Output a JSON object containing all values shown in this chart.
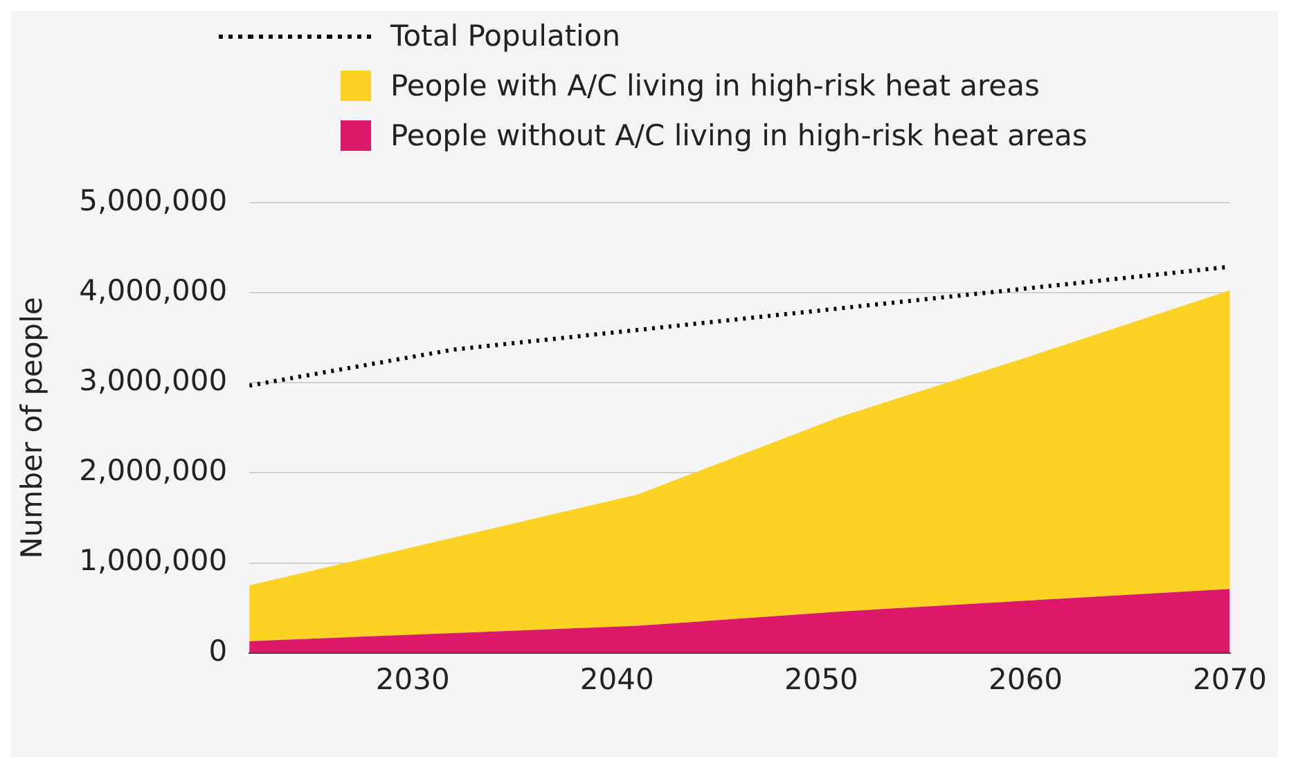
{
  "chart_data": {
    "type": "area",
    "stacked": true,
    "xlabel": null,
    "ylabel": "Number of people",
    "xlim": [
      2022,
      2070
    ],
    "xticks": [
      2030,
      2040,
      2050,
      2060,
      2070
    ],
    "ylim": [
      0,
      5000000
    ],
    "yticks": [
      0,
      {
        "value": 1000000,
        "label": "1,000,000"
      },
      {
        "value": 2000000,
        "label": "2,000,000"
      },
      {
        "value": 3000000,
        "label": "3,000,000"
      },
      {
        "value": 4000000,
        "label": "4,000,000"
      },
      {
        "value": 5000000,
        "label": "5,000,000"
      }
    ],
    "grid": "y",
    "legend": "top",
    "series": [
      {
        "name": "People without A/C living in high-risk heat areas",
        "color": "#dc1868",
        "x": [
          2022,
          2041,
          2051,
          2060,
          2070
        ],
        "values": [
          130000,
          300000,
          460000,
          580000,
          710000
        ]
      },
      {
        "name": "People with A/C living in high-risk heat areas",
        "color": "#fcd224",
        "x": [
          2022,
          2041,
          2051,
          2060,
          2070
        ],
        "values": [
          620000,
          1460000,
          2170000,
          2700000,
          3320000
        ]
      },
      {
        "name": "Total Population",
        "type": "line",
        "line_style": "dotted",
        "marker": "none",
        "color": "#000000",
        "x": [
          2022,
          2032,
          2070
        ],
        "values": [
          2970000,
          3370000,
          4290000
        ]
      }
    ]
  }
}
